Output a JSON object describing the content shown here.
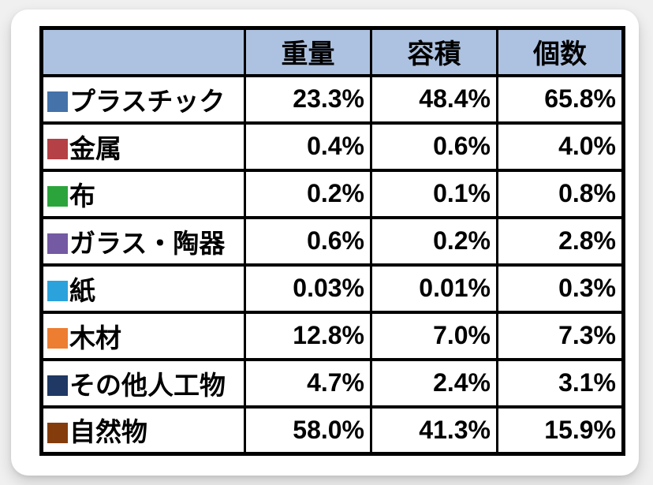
{
  "table": {
    "header_bg": "#adc2e0",
    "columns": [
      {
        "label": "重量"
      },
      {
        "label": "容積"
      },
      {
        "label": "個数"
      }
    ],
    "rows": [
      {
        "label": "プラスチック",
        "color": "#4472a9",
        "values": [
          "23.3%",
          "48.4%",
          "65.8%"
        ]
      },
      {
        "label": "金属",
        "color": "#b54045",
        "values": [
          "0.4%",
          "0.6%",
          "4.0%"
        ]
      },
      {
        "label": "布",
        "color": "#2ca43c",
        "values": [
          "0.2%",
          "0.1%",
          "0.8%"
        ]
      },
      {
        "label": "ガラス・陶器",
        "color": "#7459a3",
        "values": [
          "0.6%",
          "0.2%",
          "2.8%"
        ]
      },
      {
        "label": "紙",
        "color": "#2ba2dc",
        "values": [
          "0.03%",
          "0.01%",
          "0.3%"
        ]
      },
      {
        "label": "木材",
        "color": "#ed7d31",
        "values": [
          "12.8%",
          "7.0%",
          "7.3%"
        ]
      },
      {
        "label": "その他人工物",
        "color": "#1f3864",
        "values": [
          "4.7%",
          "2.4%",
          "3.1%"
        ]
      },
      {
        "label": "自然物",
        "color": "#843c0c",
        "values": [
          "58.0%",
          "41.3%",
          "15.9%"
        ]
      }
    ]
  },
  "chart_data": {
    "type": "table",
    "title": "",
    "categories": [
      "プラスチック",
      "金属",
      "布",
      "ガラス・陶器",
      "紙",
      "木材",
      "その他人工物",
      "自然物"
    ],
    "series": [
      {
        "name": "重量",
        "values": [
          23.3,
          0.4,
          0.2,
          0.6,
          0.03,
          12.8,
          4.7,
          58.0
        ]
      },
      {
        "name": "容積",
        "values": [
          48.4,
          0.6,
          0.1,
          0.2,
          0.01,
          7.0,
          2.4,
          41.3
        ]
      },
      {
        "name": "個数",
        "values": [
          65.8,
          4.0,
          0.8,
          2.8,
          0.3,
          7.3,
          3.1,
          15.9
        ]
      }
    ],
    "unit": "%",
    "legend_colors": [
      "#4472a9",
      "#b54045",
      "#2ca43c",
      "#7459a3",
      "#2ba2dc",
      "#ed7d31",
      "#1f3864",
      "#843c0c"
    ]
  }
}
